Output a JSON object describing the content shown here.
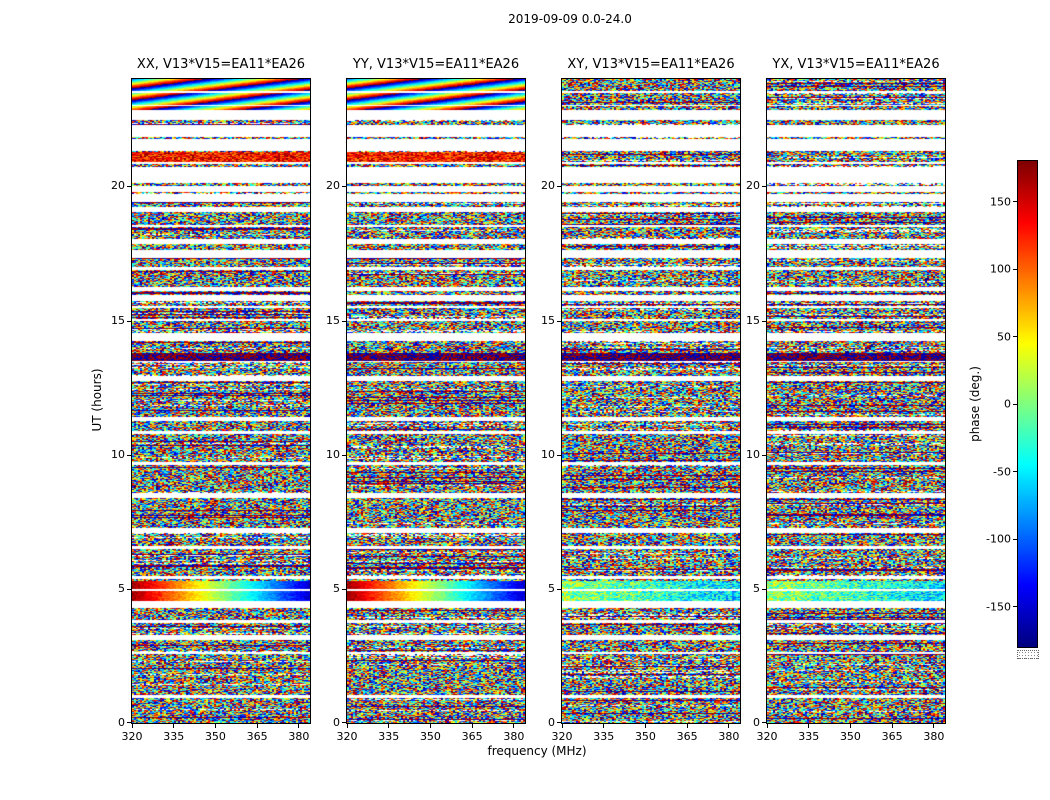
{
  "chart_data": {
    "type": "heatmap",
    "title": "2019-09-09 0.0-24.0",
    "date": "2019-09-09",
    "ut_range": [
      0.0,
      24.0
    ],
    "baseline": "V13*V15=EA11*EA26",
    "xlabel": "frequency (MHz)",
    "ylabel": "UT (hours)",
    "xlim": [
      320,
      384
    ],
    "ylim": [
      0,
      24
    ],
    "x_ticks": [
      320,
      335,
      350,
      365,
      380
    ],
    "y_ticks": [
      0,
      5,
      10,
      15,
      20
    ],
    "panels": [
      {
        "pol": "XX",
        "title": "XX, V13*V15=EA11*EA26"
      },
      {
        "pol": "YY",
        "title": "YY, V13*V15=EA11*EA26"
      },
      {
        "pol": "XY",
        "title": "XY, V13*V15=EA11*EA26"
      },
      {
        "pol": "YX",
        "title": "YX, V13*V15=EA11*EA26"
      }
    ],
    "colorbar": {
      "label": "phase (deg.)",
      "ticks": [
        150,
        100,
        50,
        0,
        -50,
        -100,
        -150
      ],
      "range": [
        -180,
        180
      ],
      "colormap": "jet"
    },
    "content": "Visibility phase vs frequency (320-384 MHz) and UT (0-24 h) for baseline V13*V15=EA11*EA26; mostly random phase speckle with many flagged (white) time rows, sparse coverage above ~20 h UT, smooth phase-wrap bands near ~5 h and ~23 h UT in XX/YY, and a dark band near ~13.7 h UT",
    "coherent_bands": [
      {
        "hours": [
          22.85,
          24.0
        ],
        "panels": [
          "XX",
          "YY"
        ],
        "type": "rainbow-sweep"
      },
      {
        "hours": [
          20.9,
          21.3
        ],
        "panels": [
          "XX",
          "YY"
        ],
        "type": "warm-noise"
      },
      {
        "hours": [
          13.5,
          13.8
        ],
        "panels": [
          "XX",
          "YY",
          "XY",
          "YX"
        ],
        "type": "dark-noise"
      },
      {
        "hours": [
          4.55,
          5.3
        ],
        "panels": [
          "XX",
          "YY"
        ],
        "type": "freq-gradient"
      },
      {
        "hours": [
          4.55,
          5.3
        ],
        "panels": [
          "XY",
          "YX"
        ],
        "type": "teal-gradient"
      }
    ]
  }
}
